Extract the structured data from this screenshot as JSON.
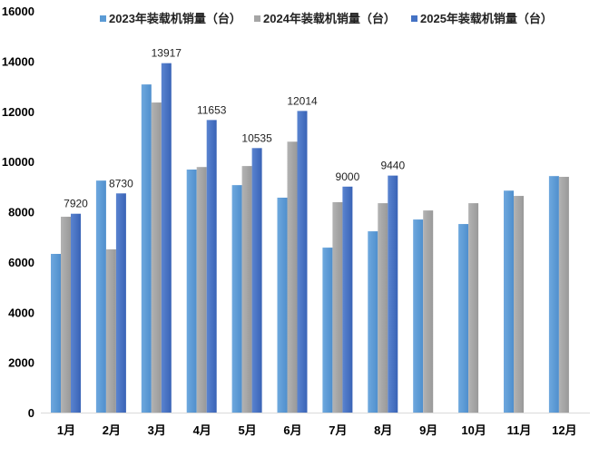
{
  "chart_data": {
    "type": "bar",
    "title": "",
    "xlabel": "",
    "ylabel": "",
    "ylim": [
      0,
      16000
    ],
    "yticks": [
      "0",
      "2000",
      "4000",
      "6000",
      "8000",
      "10000",
      "12000",
      "14000",
      "16000"
    ],
    "grid": false,
    "legend_position": "top",
    "categories": [
      "1月",
      "2月",
      "3月",
      "4月",
      "5月",
      "6月",
      "7月",
      "8月",
      "9月",
      "10月",
      "11月",
      "12月"
    ],
    "series": [
      {
        "name": "2023年装载机销量（台）",
        "color": "#5b9bd5",
        "values": [
          6320,
          9240,
          13070,
          9680,
          9060,
          8560,
          6570,
          7220,
          7690,
          7510,
          8840,
          9420
        ]
      },
      {
        "name": "2024年装载机销量（台）",
        "color": "#a5a5a5",
        "values": [
          7800,
          6500,
          12350,
          9780,
          9820,
          10790,
          8380,
          8340,
          8050,
          8340,
          8630,
          9390
        ]
      },
      {
        "name": "2025年装载机销量（台）",
        "color": "#4472c4",
        "values": [
          7920,
          8730,
          13917,
          11653,
          10535,
          12014,
          9000,
          9440,
          null,
          null,
          null,
          null
        ],
        "data_labels": [
          "7920",
          "8730",
          "13917",
          "11653",
          "10535",
          "12014",
          "9000",
          "9440"
        ]
      }
    ]
  }
}
